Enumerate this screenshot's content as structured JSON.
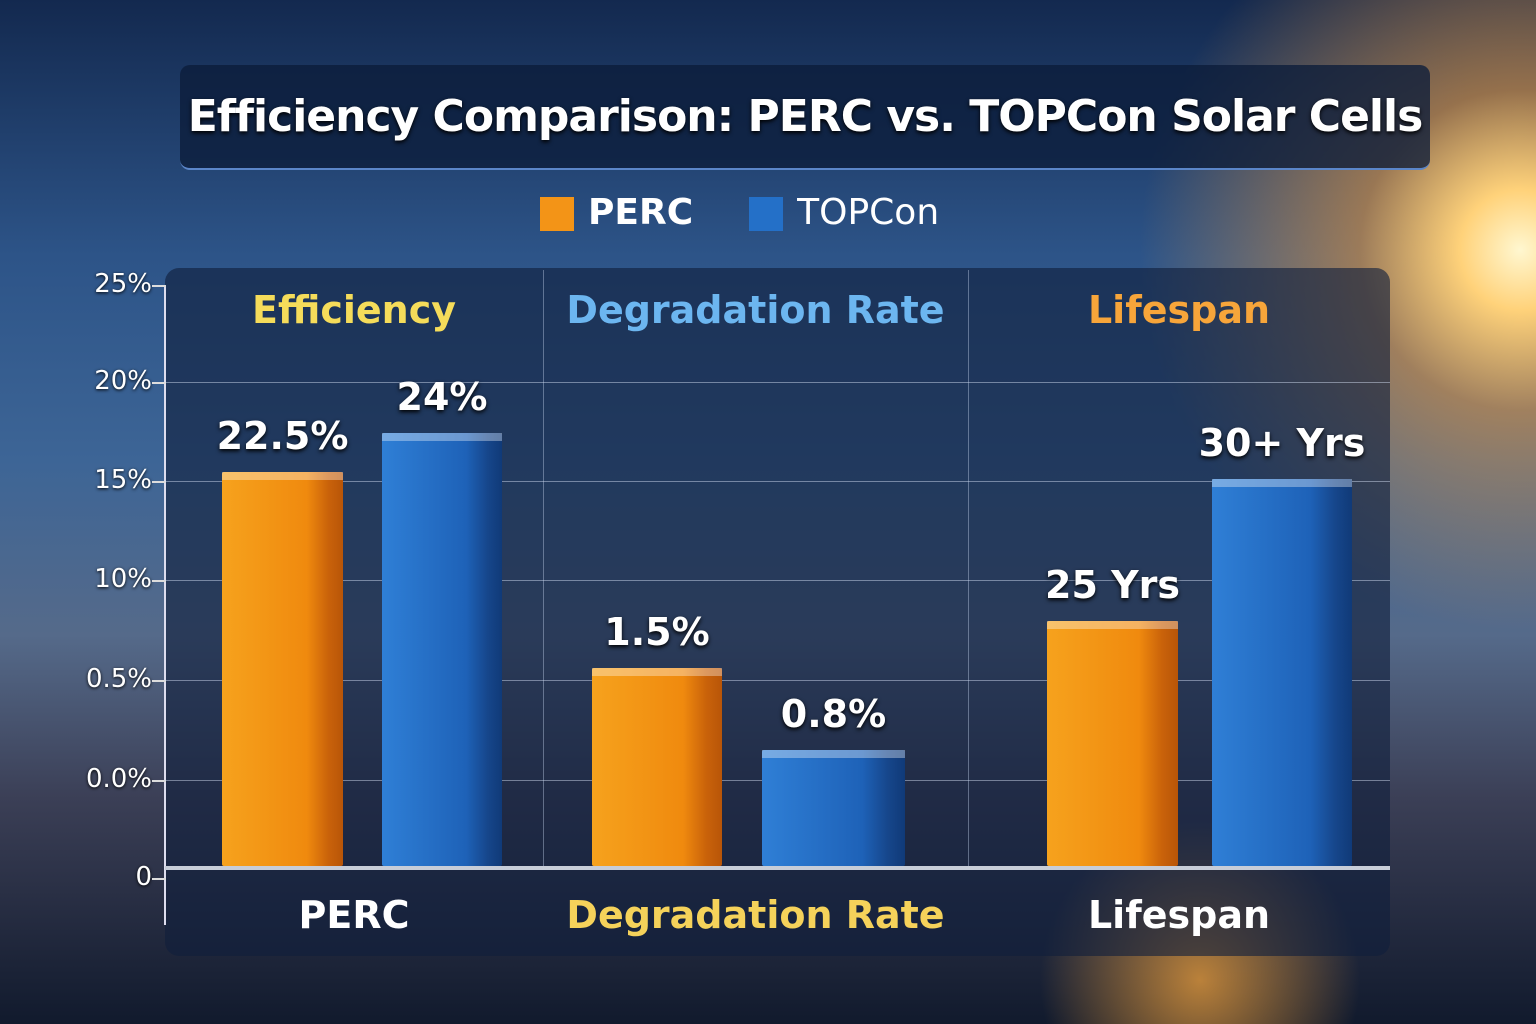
{
  "chart_data": {
    "type": "bar",
    "title": "Efficiency Comparison: PERC vs. TOPCon Solar Cells",
    "legend": [
      {
        "name": "PERC",
        "color": "#f39417"
      },
      {
        "name": "TOPCon",
        "color": "#2470c8"
      }
    ],
    "legend_position": "top-center",
    "yticks": [
      "25%",
      "20%",
      "15%",
      "10%",
      "0.5%",
      "0.0%",
      "0"
    ],
    "grid": true,
    "groups": [
      {
        "title": "Efficiency",
        "title_color": "#f5dc5a",
        "perc_label": "22.5%",
        "topcon_label": "24%",
        "perc_value": 22.5,
        "topcon_value": 24,
        "perc_fill": 0.685,
        "topcon_fill": 0.75
      },
      {
        "title": "Degradation Rate",
        "title_color": "#6cb6f0",
        "perc_label": "1.5%",
        "topcon_label": "0.8%",
        "perc_value": 1.5,
        "topcon_value": 0.8,
        "perc_fill": 0.354,
        "topcon_fill": 0.216
      },
      {
        "title": "Lifespan",
        "title_color": "#f7a53a",
        "perc_label": "25 Yrs",
        "topcon_label": "30+ Yrs",
        "perc_value": 25,
        "topcon_value": 30,
        "perc_fill": 0.433,
        "topcon_fill": 0.673
      }
    ],
    "categories": [
      {
        "label": "PERC",
        "color": "#ffffff"
      },
      {
        "label": "Degradation Rate",
        "color": "#f5d25a"
      },
      {
        "label": "Lifespan",
        "color": "#ffffff"
      }
    ]
  }
}
